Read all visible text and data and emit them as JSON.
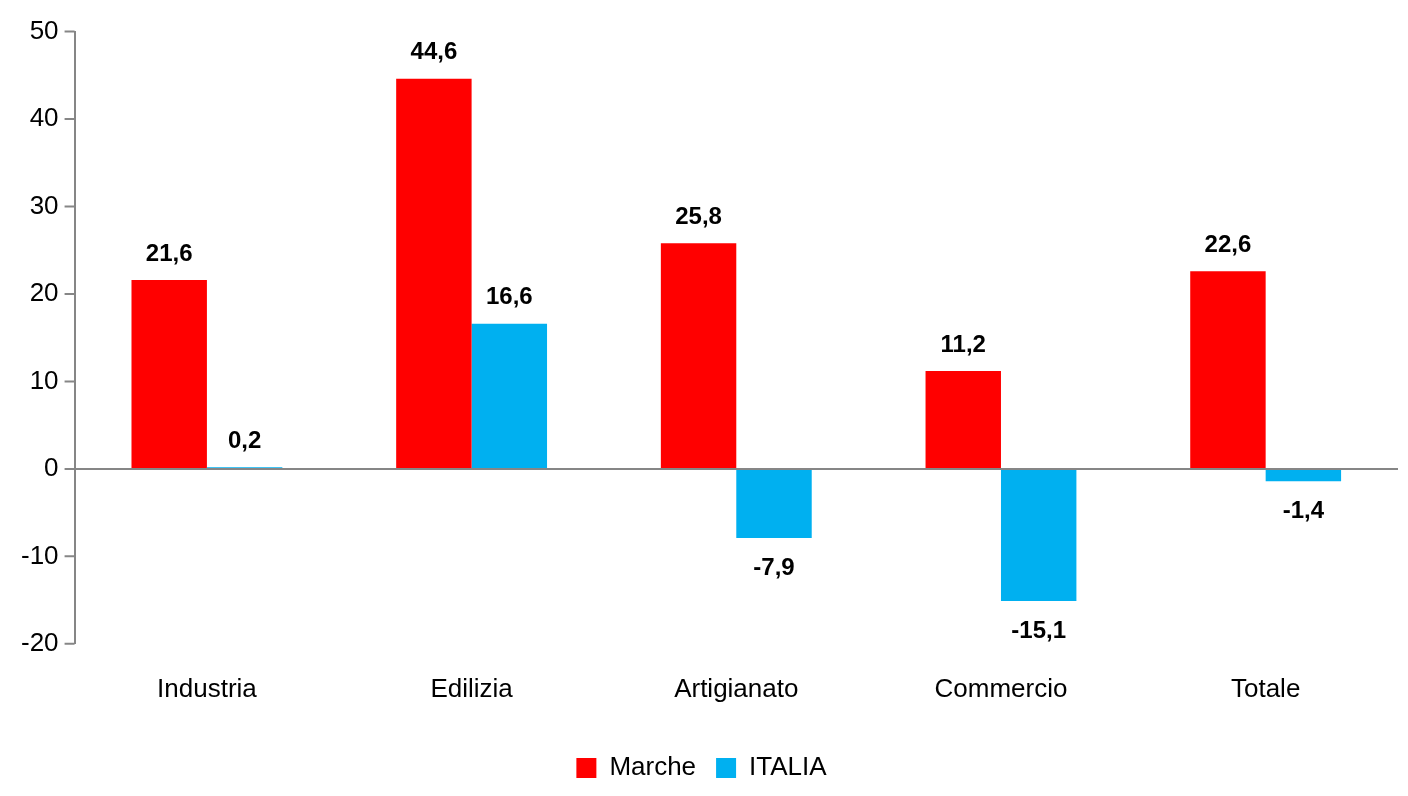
{
  "chart_data": {
    "type": "bar",
    "categories": [
      "Industria",
      "Edilizia",
      "Artigianato",
      "Commercio",
      "Totale"
    ],
    "series": [
      {
        "name": "Marche",
        "color": "#ff0000",
        "values": [
          21.6,
          44.6,
          25.8,
          11.2,
          22.6
        ],
        "value_labels": [
          "21,6",
          "44,6",
          "25,8",
          "11,2",
          "22,6"
        ]
      },
      {
        "name": "ITALIA",
        "color": "#00b0f0",
        "values": [
          0.2,
          16.6,
          -7.9,
          -15.1,
          -1.4
        ],
        "value_labels": [
          "0,2",
          "16,6",
          "-7,9",
          "-15,1",
          "-1,4"
        ]
      }
    ],
    "ylim": [
      -20,
      50
    ],
    "yticks": [
      -20,
      -10,
      0,
      10,
      20,
      30,
      40,
      50
    ],
    "ref_lines": [
      {
        "axis": "y",
        "value": 0,
        "color": "#868686"
      }
    ],
    "grid": false,
    "legend": "bottom"
  }
}
